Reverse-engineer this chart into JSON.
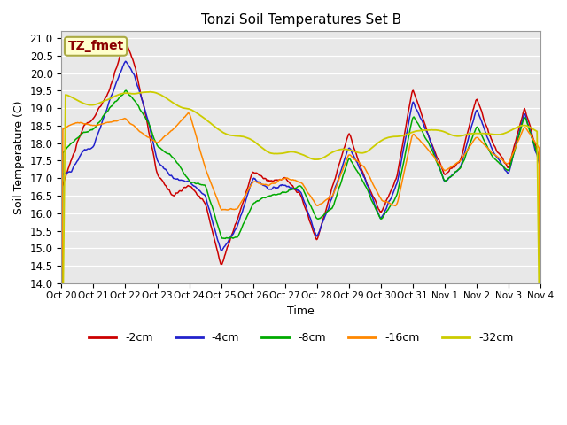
{
  "title": "Tonzi Soil Temperatures Set B",
  "xlabel": "Time",
  "ylabel": "Soil Temperature (C)",
  "ylim": [
    14.0,
    21.2
  ],
  "yticks": [
    14.0,
    14.5,
    15.0,
    15.5,
    16.0,
    16.5,
    17.0,
    17.5,
    18.0,
    18.5,
    19.0,
    19.5,
    20.0,
    20.5,
    21.0
  ],
  "xtick_labels": [
    "Oct 20",
    "Oct 21",
    "Oct 22",
    "Oct 23",
    "Oct 24",
    "Oct 25",
    "Oct 26",
    "Oct 27",
    "Oct 28",
    "Oct 29",
    "Oct 30",
    "Oct 31",
    "Nov 1",
    "Nov 2",
    "Nov 3",
    "Nov 4"
  ],
  "colors": {
    "-2cm": "#cc0000",
    "-4cm": "#2222cc",
    "-8cm": "#00aa00",
    "-16cm": "#ff8800",
    "-32cm": "#cccc00"
  },
  "legend_label": "TZ_fmet",
  "legend_bg": "#ffffcc",
  "legend_border": "#aaaa44",
  "plot_bg": "#e8e8e8",
  "fig_bg": "#ffffff"
}
